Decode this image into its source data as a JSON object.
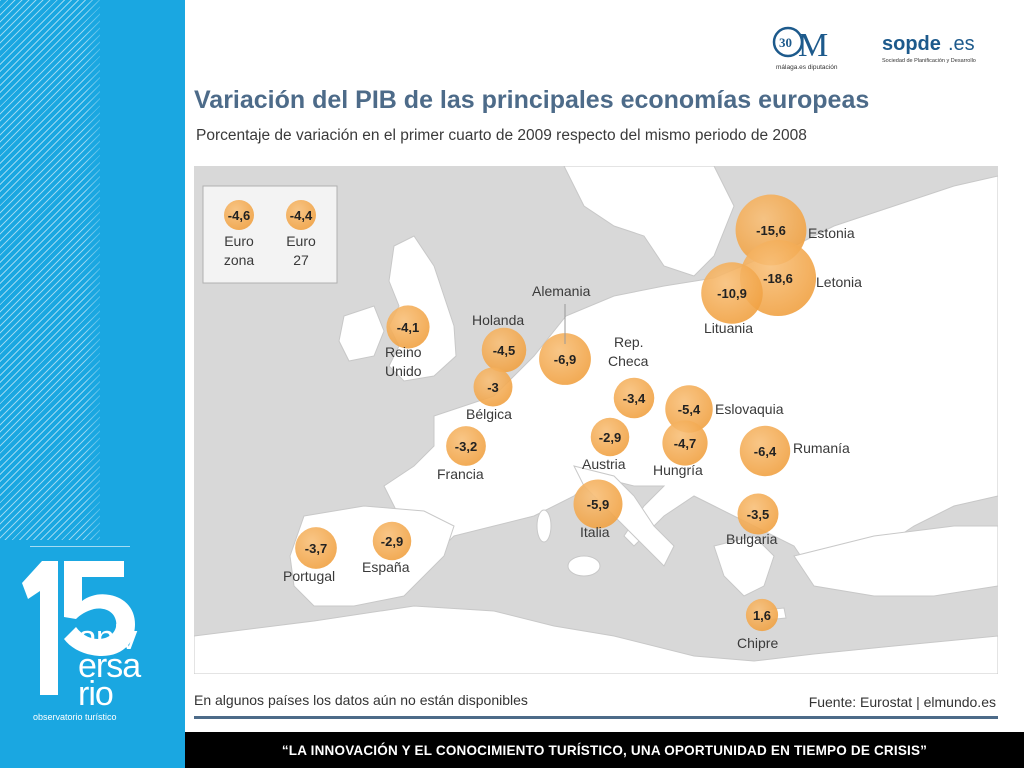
{
  "header": {
    "title": "Variación del PIB de las principales economías europeas",
    "subtitle": "Porcentaje de variación en el primer cuarto de 2009 respecto del mismo periodo de 2008"
  },
  "logos": {
    "diputacion_number": "30",
    "diputacion_letter": "M",
    "diputacion_text": "málaga.es diputación",
    "sopde_name": "sopde",
    "sopde_domain": ".es",
    "sopde_tagline": "Sociedad de Planificación y Desarrollo"
  },
  "sidebar": {
    "anniversary_number": "15",
    "anniversary_words": [
      "aniv",
      "ersa",
      "rio"
    ],
    "label": "observatorio turístico"
  },
  "legend": [
    {
      "value": "-4,6",
      "label_lines": [
        "Euro",
        "zona"
      ]
    },
    {
      "value": "-4,4",
      "label_lines": [
        "Euro",
        "27"
      ]
    }
  ],
  "countries": [
    {
      "name_lines": [
        "Estonia"
      ],
      "value": "-15,6"
    },
    {
      "name_lines": [
        "Letonia"
      ],
      "value": "-18,6"
    },
    {
      "name_lines": [
        "Lituania"
      ],
      "value": "-10,9"
    },
    {
      "name_lines": [
        "Alemania"
      ],
      "value": "-6,9"
    },
    {
      "name_lines": [
        "Holanda"
      ],
      "value": "-4,5"
    },
    {
      "name_lines": [
        "Reino",
        "Unido"
      ],
      "value": "-4,1"
    },
    {
      "name_lines": [
        "Rep.",
        "Checa"
      ],
      "value": "-3,4"
    },
    {
      "name_lines": [
        "Bélgica"
      ],
      "value": "-3"
    },
    {
      "name_lines": [
        "Eslovaquia"
      ],
      "value": "-5,4"
    },
    {
      "name_lines": [
        "Francia"
      ],
      "value": "-3,2"
    },
    {
      "name_lines": [
        "Austria"
      ],
      "value": "-2,9"
    },
    {
      "name_lines": [
        "Hungría"
      ],
      "value": "-4,7"
    },
    {
      "name_lines": [
        "Rumanía"
      ],
      "value": "-6,4"
    },
    {
      "name_lines": [
        "Italia"
      ],
      "value": "-5,9"
    },
    {
      "name_lines": [
        "Bulgaria"
      ],
      "value": "-3,5"
    },
    {
      "name_lines": [
        "Portugal"
      ],
      "value": "-3,7"
    },
    {
      "name_lines": [
        "España"
      ],
      "value": "-2,9"
    },
    {
      "name_lines": [
        "Chipre"
      ],
      "value": "1,6"
    }
  ],
  "footer": {
    "note": "En algunos países los datos aún no están disponibles",
    "source": "Fuente: Eurostat | elmundo.es",
    "slogan": "“LA INNOVACIÓN Y EL CONOCIMIENTO TURÍSTICO, UNA OPORTUNIDAD EN TIEMPO DE CRISIS”"
  },
  "colors": {
    "sidebar_blue": "#1aa7e1",
    "title_blue": "#4d6b89",
    "bubble_orange": "#f5a94a",
    "land": "#ffffff",
    "sea": "#d8d8d8",
    "footer_bar": "#000000"
  }
}
